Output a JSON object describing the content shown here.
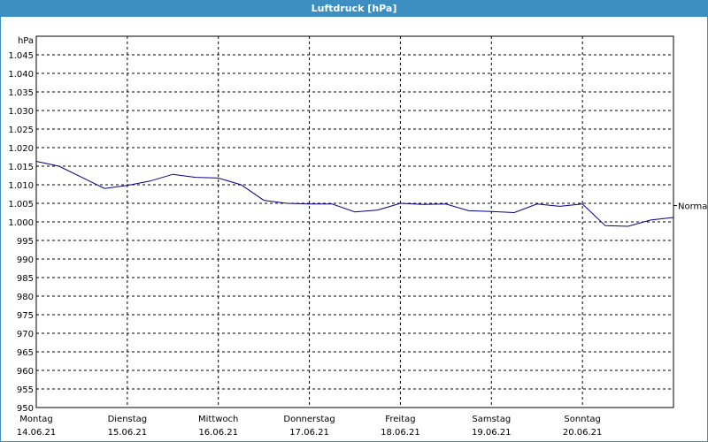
{
  "colors": {
    "title_bar": "#3d8fc2",
    "series": "#00008b",
    "grid": "#000000"
  },
  "chart_data": {
    "type": "line",
    "title": "Luftdruck [hPa]",
    "ylabel": "hPa",
    "ylim": [
      950,
      1050
    ],
    "yticks": [
      950,
      955,
      960,
      965,
      970,
      975,
      980,
      985,
      990,
      995,
      1000,
      1005,
      1010,
      1015,
      1020,
      1025,
      1030,
      1035,
      1040,
      1045
    ],
    "ytick_labels": [
      "950",
      "955",
      "960",
      "965",
      "970",
      "975",
      "980",
      "985",
      "990",
      "995",
      "1.000",
      "1.005",
      "1.010",
      "1.015",
      "1.020",
      "1.025",
      "1.030",
      "1.035",
      "1.040",
      "1.045"
    ],
    "xlim": [
      "14.06.21 00:00",
      "21.06.21 00:00"
    ],
    "x_categories": [
      {
        "day": "Montag",
        "date": "14.06.21"
      },
      {
        "day": "Dienstag",
        "date": "15.06.21"
      },
      {
        "day": "Mittwoch",
        "date": "16.06.21"
      },
      {
        "day": "Donnerstag",
        "date": "17.06.21"
      },
      {
        "day": "Freitag",
        "date": "18.06.21"
      },
      {
        "day": "Samstag",
        "date": "19.06.21"
      },
      {
        "day": "Sonntag",
        "date": "20.06.21"
      }
    ],
    "grid": true,
    "reference_line": {
      "label": "Normal",
      "value": 1004.4
    },
    "series": [
      {
        "x": [
          "14.06.21 00:00",
          "14.06.21 06:00",
          "14.06.21 12:00",
          "14.06.21 18:00",
          "15.06.21 00:00",
          "15.06.21 06:00",
          "15.06.21 12:00",
          "15.06.21 18:00",
          "16.06.21 00:00",
          "16.06.21 06:00",
          "16.06.21 12:00",
          "16.06.21 18:00",
          "17.06.21 00:00",
          "17.06.21 06:00",
          "17.06.21 12:00",
          "17.06.21 18:00",
          "18.06.21 00:00",
          "18.06.21 06:00",
          "18.06.21 12:00",
          "18.06.21 18:00",
          "19.06.21 00:00",
          "19.06.21 06:00",
          "19.06.21 12:00",
          "19.06.21 18:00",
          "20.06.21 00:00",
          "20.06.21 06:00",
          "20.06.21 12:00",
          "20.06.21 18:00",
          "21.06.21 00:00"
        ],
        "values": [
          1016.3,
          1015.0,
          1012.0,
          1009.0,
          1009.8,
          1011.0,
          1012.8,
          1012.0,
          1011.8,
          1010.0,
          1005.8,
          1005.0,
          1004.8,
          1004.8,
          1002.7,
          1003.2,
          1005.0,
          1004.7,
          1004.8,
          1003.0,
          1002.8,
          1002.5,
          1004.8,
          1004.2,
          1004.8,
          999.0,
          998.8,
          1000.5,
          1001.2
        ]
      }
    ]
  }
}
